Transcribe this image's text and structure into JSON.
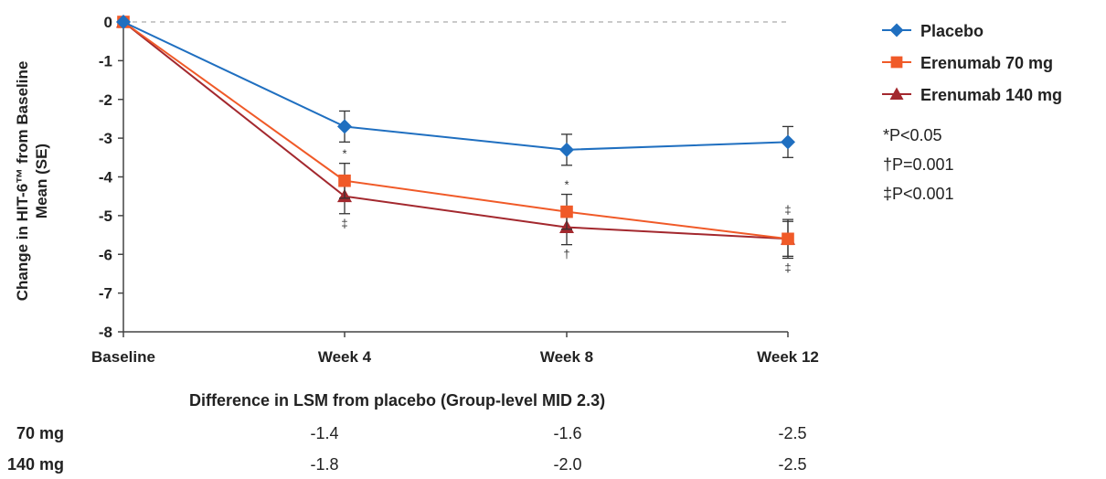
{
  "chart_data": {
    "type": "line",
    "categories": [
      "Baseline",
      "Week 4",
      "Week 8",
      "Week 12"
    ],
    "ylabel": "Change in HIT-6™ from Baseline Mean (SE)",
    "ylabel_lines": [
      "Change in HIT-6™ from Baseline",
      "Mean (SE)"
    ],
    "ylim": [
      -8,
      0
    ],
    "yticks": [
      0,
      -1,
      -2,
      -3,
      -4,
      -5,
      -6,
      -7,
      -8
    ],
    "reference_line": 0,
    "series": [
      {
        "name": "Placebo",
        "color": "#1f6fc0",
        "marker": "diamond",
        "values": [
          0,
          -2.7,
          -3.3,
          -3.1
        ],
        "se": [
          0,
          0.4,
          0.4,
          0.4
        ]
      },
      {
        "name": "Erenumab 70 mg",
        "color": "#f05a28",
        "marker": "square",
        "values": [
          0,
          -4.1,
          -4.9,
          -5.6
        ],
        "se": [
          0,
          0.45,
          0.45,
          0.45
        ]
      },
      {
        "name": "Erenumab 140 mg",
        "color": "#a3282e",
        "marker": "triangle",
        "values": [
          0,
          -4.5,
          -5.3,
          -5.6
        ],
        "se": [
          0,
          0.45,
          0.45,
          0.5
        ]
      }
    ],
    "significance_marks": [
      {
        "category": "Week 4",
        "above": "*",
        "below": "‡"
      },
      {
        "category": "Week 8",
        "above": "*",
        "below": "†"
      },
      {
        "category": "Week 12",
        "above": "‡",
        "below": "‡"
      }
    ],
    "notes": [
      "*P<0.05",
      "†P=0.001",
      "‡P<0.001"
    ],
    "legend_position": "right"
  },
  "difference_table": {
    "title": "Difference in LSM from placebo (Group-level MID 2.3)",
    "rows": [
      {
        "label": "70 mg",
        "values": [
          "-1.4",
          "-1.6",
          "-2.5"
        ]
      },
      {
        "label": "140 mg",
        "values": [
          "-1.8",
          "-2.0",
          "-2.5"
        ]
      }
    ]
  }
}
